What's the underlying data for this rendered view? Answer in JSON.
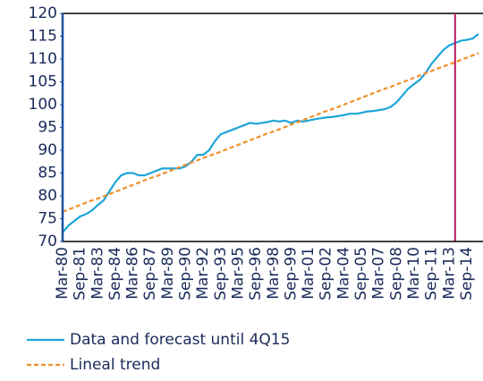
{
  "chart_data": {
    "type": "line",
    "categories": [
      "Mar-80",
      null,
      null,
      "Sep-81",
      null,
      null,
      "Mar-83",
      null,
      null,
      "Sep-84",
      null,
      null,
      "Mar-86",
      null,
      null,
      "Sep-87",
      null,
      null,
      "Mar-89",
      null,
      null,
      "Sep-90",
      null,
      null,
      "Mar-92",
      null,
      null,
      "Sep-93",
      null,
      null,
      "Mar-95",
      null,
      null,
      "Sep-96",
      null,
      null,
      "Mar-98",
      null,
      null,
      "Sep-99",
      null,
      null,
      "Mar-01",
      null,
      null,
      "Sep-02",
      null,
      null,
      "Mar-04",
      null,
      null,
      "Sep-05",
      null,
      null,
      "Mar-07",
      null,
      null,
      "Sep-08",
      null,
      null,
      "Mar-10",
      null,
      null,
      "Sep-11",
      null,
      null,
      "Mar-13",
      null,
      null,
      "Sep-14",
      null,
      null
    ],
    "series": [
      {
        "name": "Data and forecast until 4Q15",
        "color": "#1ea5d8",
        "dash": false,
        "values": [
          72,
          73.5,
          74.5,
          75.5,
          76,
          76.8,
          78,
          79,
          81,
          83,
          84.5,
          85,
          85,
          84.5,
          84.5,
          85,
          85.5,
          86,
          86,
          86,
          86,
          86.5,
          87.5,
          89,
          89,
          90,
          92,
          93.5,
          94,
          94.5,
          95,
          95.5,
          96,
          95.8,
          96,
          96.2,
          96.5,
          96.3,
          96.5,
          96,
          96.5,
          96.3,
          96.5,
          96.8,
          97,
          97.2,
          97.3,
          97.5,
          97.7,
          98,
          98,
          98.2,
          98.5,
          98.6,
          98.8,
          99,
          99.5,
          100.5,
          102,
          103.5,
          104.5,
          105.5,
          107,
          109,
          110.5,
          112,
          113,
          113.5,
          114,
          114.2,
          114.5,
          115.5
        ]
      },
      {
        "name": "Lineal trend",
        "color": "#f0902a",
        "dash": true,
        "values": [
          76.5,
          77,
          77.5,
          78,
          78.5,
          79,
          79.4,
          79.9,
          80.4,
          80.9,
          81.4,
          81.9,
          82.4,
          82.9,
          83.4,
          83.9,
          84.3,
          84.8,
          85.3,
          85.8,
          86.3,
          86.8,
          87.3,
          87.8,
          88.3,
          88.8,
          89.2,
          89.7,
          90.2,
          90.7,
          91.2,
          91.7,
          92.2,
          92.7,
          93.2,
          93.7,
          94.1,
          94.6,
          95.1,
          95.6,
          96.1,
          96.6,
          97.1,
          97.6,
          98.1,
          98.6,
          99,
          99.5,
          100,
          100.5,
          101,
          101.5,
          102,
          102.5,
          103,
          103.5,
          103.9,
          104.4,
          104.9,
          105.4,
          105.9,
          106.4,
          106.9,
          107.4,
          107.9,
          108.4,
          108.8,
          109.3,
          109.8,
          110.3,
          110.8,
          111.3
        ]
      }
    ],
    "forecast_line": {
      "index": 67,
      "color": "#c0185f"
    },
    "ylim": [
      70,
      120
    ],
    "yticks": [
      70,
      75,
      80,
      85,
      90,
      95,
      100,
      105,
      110,
      115,
      120
    ]
  }
}
